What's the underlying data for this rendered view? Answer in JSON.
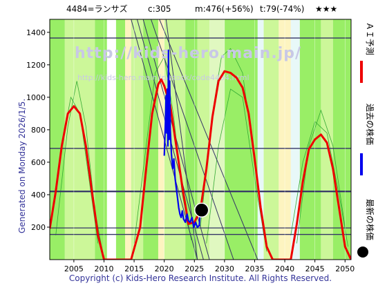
{
  "header": {
    "code_name": "4484=ランサズ",
    "current": "c:305",
    "max": "m:476(+56%)",
    "target": "t:79(-74%)",
    "stars": "★★★"
  },
  "watermark": {
    "url_large": "http://kids-hero.main.jp/",
    "url_small": "http://kids-hero.main.jp/stock/code4484.html"
  },
  "side_label": "Generated on Monday 2026/1/5.",
  "footer": "Copyright (c) Kids-Hero Research Institute. All Rights Reserved.",
  "legend": [
    {
      "label": "ＡＩ予測",
      "color": "#ee0000"
    },
    {
      "label": "過去の株価",
      "color": "#0000ee"
    },
    {
      "label": "最新の株価",
      "color": "#000000"
    }
  ],
  "chart_data": {
    "type": "line",
    "xlim": [
      2001,
      2051
    ],
    "ylim": [
      0,
      1480
    ],
    "x_ticks": [
      2005,
      2010,
      2015,
      2020,
      2025,
      2030,
      2035,
      2040,
      2045,
      2050
    ],
    "y_ticks": [
      200,
      400,
      600,
      800,
      1000,
      1200,
      1400
    ],
    "horizontal_levels": [
      155,
      195,
      420,
      685,
      1365
    ],
    "series": [
      {
        "name": "ＡＩ予測",
        "color": "#ee0000",
        "points": [
          [
            2001,
            190
          ],
          [
            2002,
            420
          ],
          [
            2003,
            700
          ],
          [
            2004,
            900
          ],
          [
            2005,
            945
          ],
          [
            2006,
            900
          ],
          [
            2007,
            700
          ],
          [
            2008,
            420
          ],
          [
            2009,
            150
          ],
          [
            2010,
            0
          ],
          [
            2011.5,
            0
          ],
          [
            2013,
            0
          ],
          [
            2014.5,
            0
          ],
          [
            2016,
            200
          ],
          [
            2017,
            560
          ],
          [
            2018,
            900
          ],
          [
            2019,
            1080
          ],
          [
            2019.5,
            1110
          ],
          [
            2020,
            1070
          ],
          [
            2021,
            950
          ],
          [
            2022,
            700
          ],
          [
            2023,
            450
          ],
          [
            2024,
            220
          ],
          [
            2025,
            230
          ],
          [
            2026,
            305
          ],
          [
            2027,
            560
          ],
          [
            2028,
            880
          ],
          [
            2029,
            1100
          ],
          [
            2030,
            1160
          ],
          [
            2031,
            1150
          ],
          [
            2032,
            1120
          ],
          [
            2033,
            1060
          ],
          [
            2034,
            900
          ],
          [
            2035,
            620
          ],
          [
            2036,
            320
          ],
          [
            2037,
            80
          ],
          [
            2038,
            0
          ],
          [
            2040,
            0
          ],
          [
            2041,
            0
          ],
          [
            2042,
            220
          ],
          [
            2043,
            480
          ],
          [
            2044,
            680
          ],
          [
            2045,
            740
          ],
          [
            2046,
            770
          ],
          [
            2047,
            720
          ],
          [
            2048,
            560
          ],
          [
            2049,
            320
          ],
          [
            2050,
            80
          ],
          [
            2051,
            0
          ]
        ]
      },
      {
        "name": "過去の株価",
        "color": "#0000ee",
        "points": [
          [
            2020.0,
            640
          ],
          [
            2020.2,
            850
          ],
          [
            2020.3,
            1010
          ],
          [
            2020.4,
            780
          ],
          [
            2020.5,
            1050
          ],
          [
            2020.6,
            700
          ],
          [
            2020.7,
            1290
          ],
          [
            2020.8,
            740
          ],
          [
            2020.9,
            1100
          ],
          [
            2021.0,
            800
          ],
          [
            2021.2,
            650
          ],
          [
            2021.4,
            560
          ],
          [
            2021.6,
            620
          ],
          [
            2021.8,
            500
          ],
          [
            2022.0,
            440
          ],
          [
            2022.2,
            380
          ],
          [
            2022.4,
            320
          ],
          [
            2022.6,
            280
          ],
          [
            2022.8,
            260
          ],
          [
            2023.0,
            300
          ],
          [
            2023.2,
            250
          ],
          [
            2023.5,
            230
          ],
          [
            2023.8,
            280
          ],
          [
            2024.0,
            240
          ],
          [
            2024.3,
            230
          ],
          [
            2024.6,
            260
          ],
          [
            2024.9,
            200
          ],
          [
            2025.2,
            230
          ],
          [
            2025.5,
            200
          ],
          [
            2025.8,
            210
          ],
          [
            2026.0,
            305
          ]
        ]
      }
    ],
    "latest": {
      "x": 2026.2,
      "y": 305
    }
  }
}
